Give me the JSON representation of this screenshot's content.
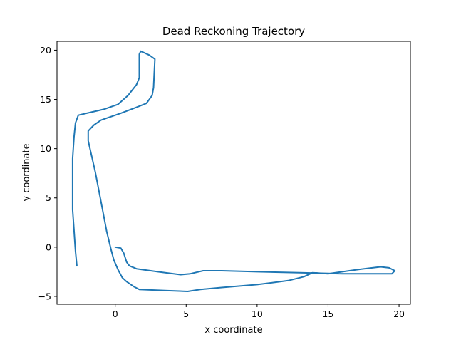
{
  "chart_data": {
    "type": "line",
    "title": "Dead Reckoning Trajectory",
    "xlabel": "x coordinate",
    "ylabel": "y coordinate",
    "xlim": [
      -4.1,
      20.8
    ],
    "ylim": [
      -5.8,
      20.9
    ],
    "xticks": [
      0,
      5,
      10,
      15,
      20
    ],
    "yticks": [
      -5,
      0,
      5,
      10,
      15,
      20
    ],
    "grid": false,
    "legend": "none",
    "series": [
      {
        "color": "#1f77b4",
        "points": [
          [
            0.0,
            0.0
          ],
          [
            0.4,
            -0.1
          ],
          [
            0.6,
            -0.6
          ],
          [
            0.8,
            -1.5
          ],
          [
            1.0,
            -1.9
          ],
          [
            1.5,
            -2.2
          ],
          [
            3.0,
            -2.5
          ],
          [
            4.6,
            -2.8
          ],
          [
            5.3,
            -2.7
          ],
          [
            6.2,
            -2.4
          ],
          [
            7.5,
            -2.4
          ],
          [
            10.0,
            -2.5
          ],
          [
            13.0,
            -2.6
          ],
          [
            16.0,
            -2.7
          ],
          [
            18.0,
            -2.7
          ],
          [
            19.5,
            -2.7
          ],
          [
            19.7,
            -2.4
          ],
          [
            19.3,
            -2.1
          ],
          [
            18.7,
            -2.0
          ],
          [
            17.0,
            -2.3
          ],
          [
            15.0,
            -2.7
          ],
          [
            13.9,
            -2.6
          ],
          [
            13.3,
            -3.0
          ],
          [
            12.2,
            -3.4
          ],
          [
            10.0,
            -3.8
          ],
          [
            7.5,
            -4.1
          ],
          [
            6.0,
            -4.3
          ],
          [
            5.1,
            -4.5
          ],
          [
            3.5,
            -4.4
          ],
          [
            1.7,
            -4.3
          ],
          [
            1.3,
            -4.0
          ],
          [
            0.8,
            -3.5
          ],
          [
            0.5,
            -3.1
          ],
          [
            0.2,
            -2.3
          ],
          [
            -0.1,
            -1.3
          ],
          [
            -0.3,
            -0.2
          ],
          [
            -0.6,
            1.6
          ],
          [
            -1.0,
            4.6
          ],
          [
            -1.4,
            7.6
          ],
          [
            -1.9,
            10.8
          ],
          [
            -1.9,
            11.8
          ],
          [
            -1.5,
            12.4
          ],
          [
            -1.0,
            12.9
          ],
          [
            -0.6,
            13.1
          ],
          [
            0.4,
            13.6
          ],
          [
            1.5,
            14.2
          ],
          [
            2.2,
            14.6
          ],
          [
            2.6,
            15.4
          ],
          [
            2.7,
            16.2
          ],
          [
            2.8,
            19.1
          ],
          [
            2.4,
            19.5
          ],
          [
            1.8,
            19.9
          ],
          [
            1.7,
            19.6
          ],
          [
            1.7,
            17.2
          ],
          [
            1.5,
            16.5
          ],
          [
            0.9,
            15.4
          ],
          [
            0.2,
            14.5
          ],
          [
            -0.8,
            14.0
          ],
          [
            -2.0,
            13.6
          ],
          [
            -2.6,
            13.4
          ],
          [
            -2.8,
            12.6
          ],
          [
            -2.9,
            11.2
          ],
          [
            -3.0,
            9.0
          ],
          [
            -3.0,
            5.0
          ],
          [
            -3.0,
            3.8
          ],
          [
            -2.8,
            -0.4
          ],
          [
            -2.7,
            -1.9
          ]
        ]
      }
    ]
  }
}
